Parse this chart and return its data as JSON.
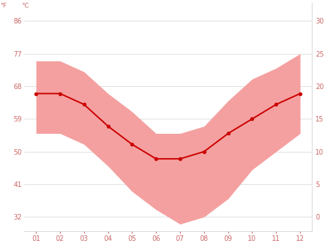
{
  "months": [
    1,
    2,
    3,
    4,
    5,
    6,
    7,
    8,
    9,
    10,
    11,
    12
  ],
  "month_labels": [
    "01",
    "02",
    "03",
    "04",
    "05",
    "06",
    "07",
    "08",
    "09",
    "10",
    "11",
    "12"
  ],
  "avg_temp_f": [
    66,
    66,
    63,
    57,
    52,
    48,
    48,
    50,
    55,
    59,
    63,
    66
  ],
  "max_temp_f": [
    75,
    75,
    72,
    66,
    61,
    55,
    55,
    57,
    64,
    70,
    73,
    77
  ],
  "min_temp_f": [
    55,
    55,
    52,
    46,
    39,
    34,
    30,
    32,
    37,
    45,
    50,
    55
  ],
  "line_color": "#cc0000",
  "fill_color": "#f4a0a0",
  "background_color": "#ffffff",
  "grid_color": "#d0d0d0",
  "yticks_f": [
    32,
    41,
    50,
    59,
    68,
    77,
    86
  ],
  "yticks_c": [
    0,
    5,
    10,
    15,
    20,
    25,
    30
  ],
  "ylim_f": [
    28,
    91
  ],
  "tick_color": "#cc6666",
  "label_fontsize": 7,
  "marker_size": 3
}
